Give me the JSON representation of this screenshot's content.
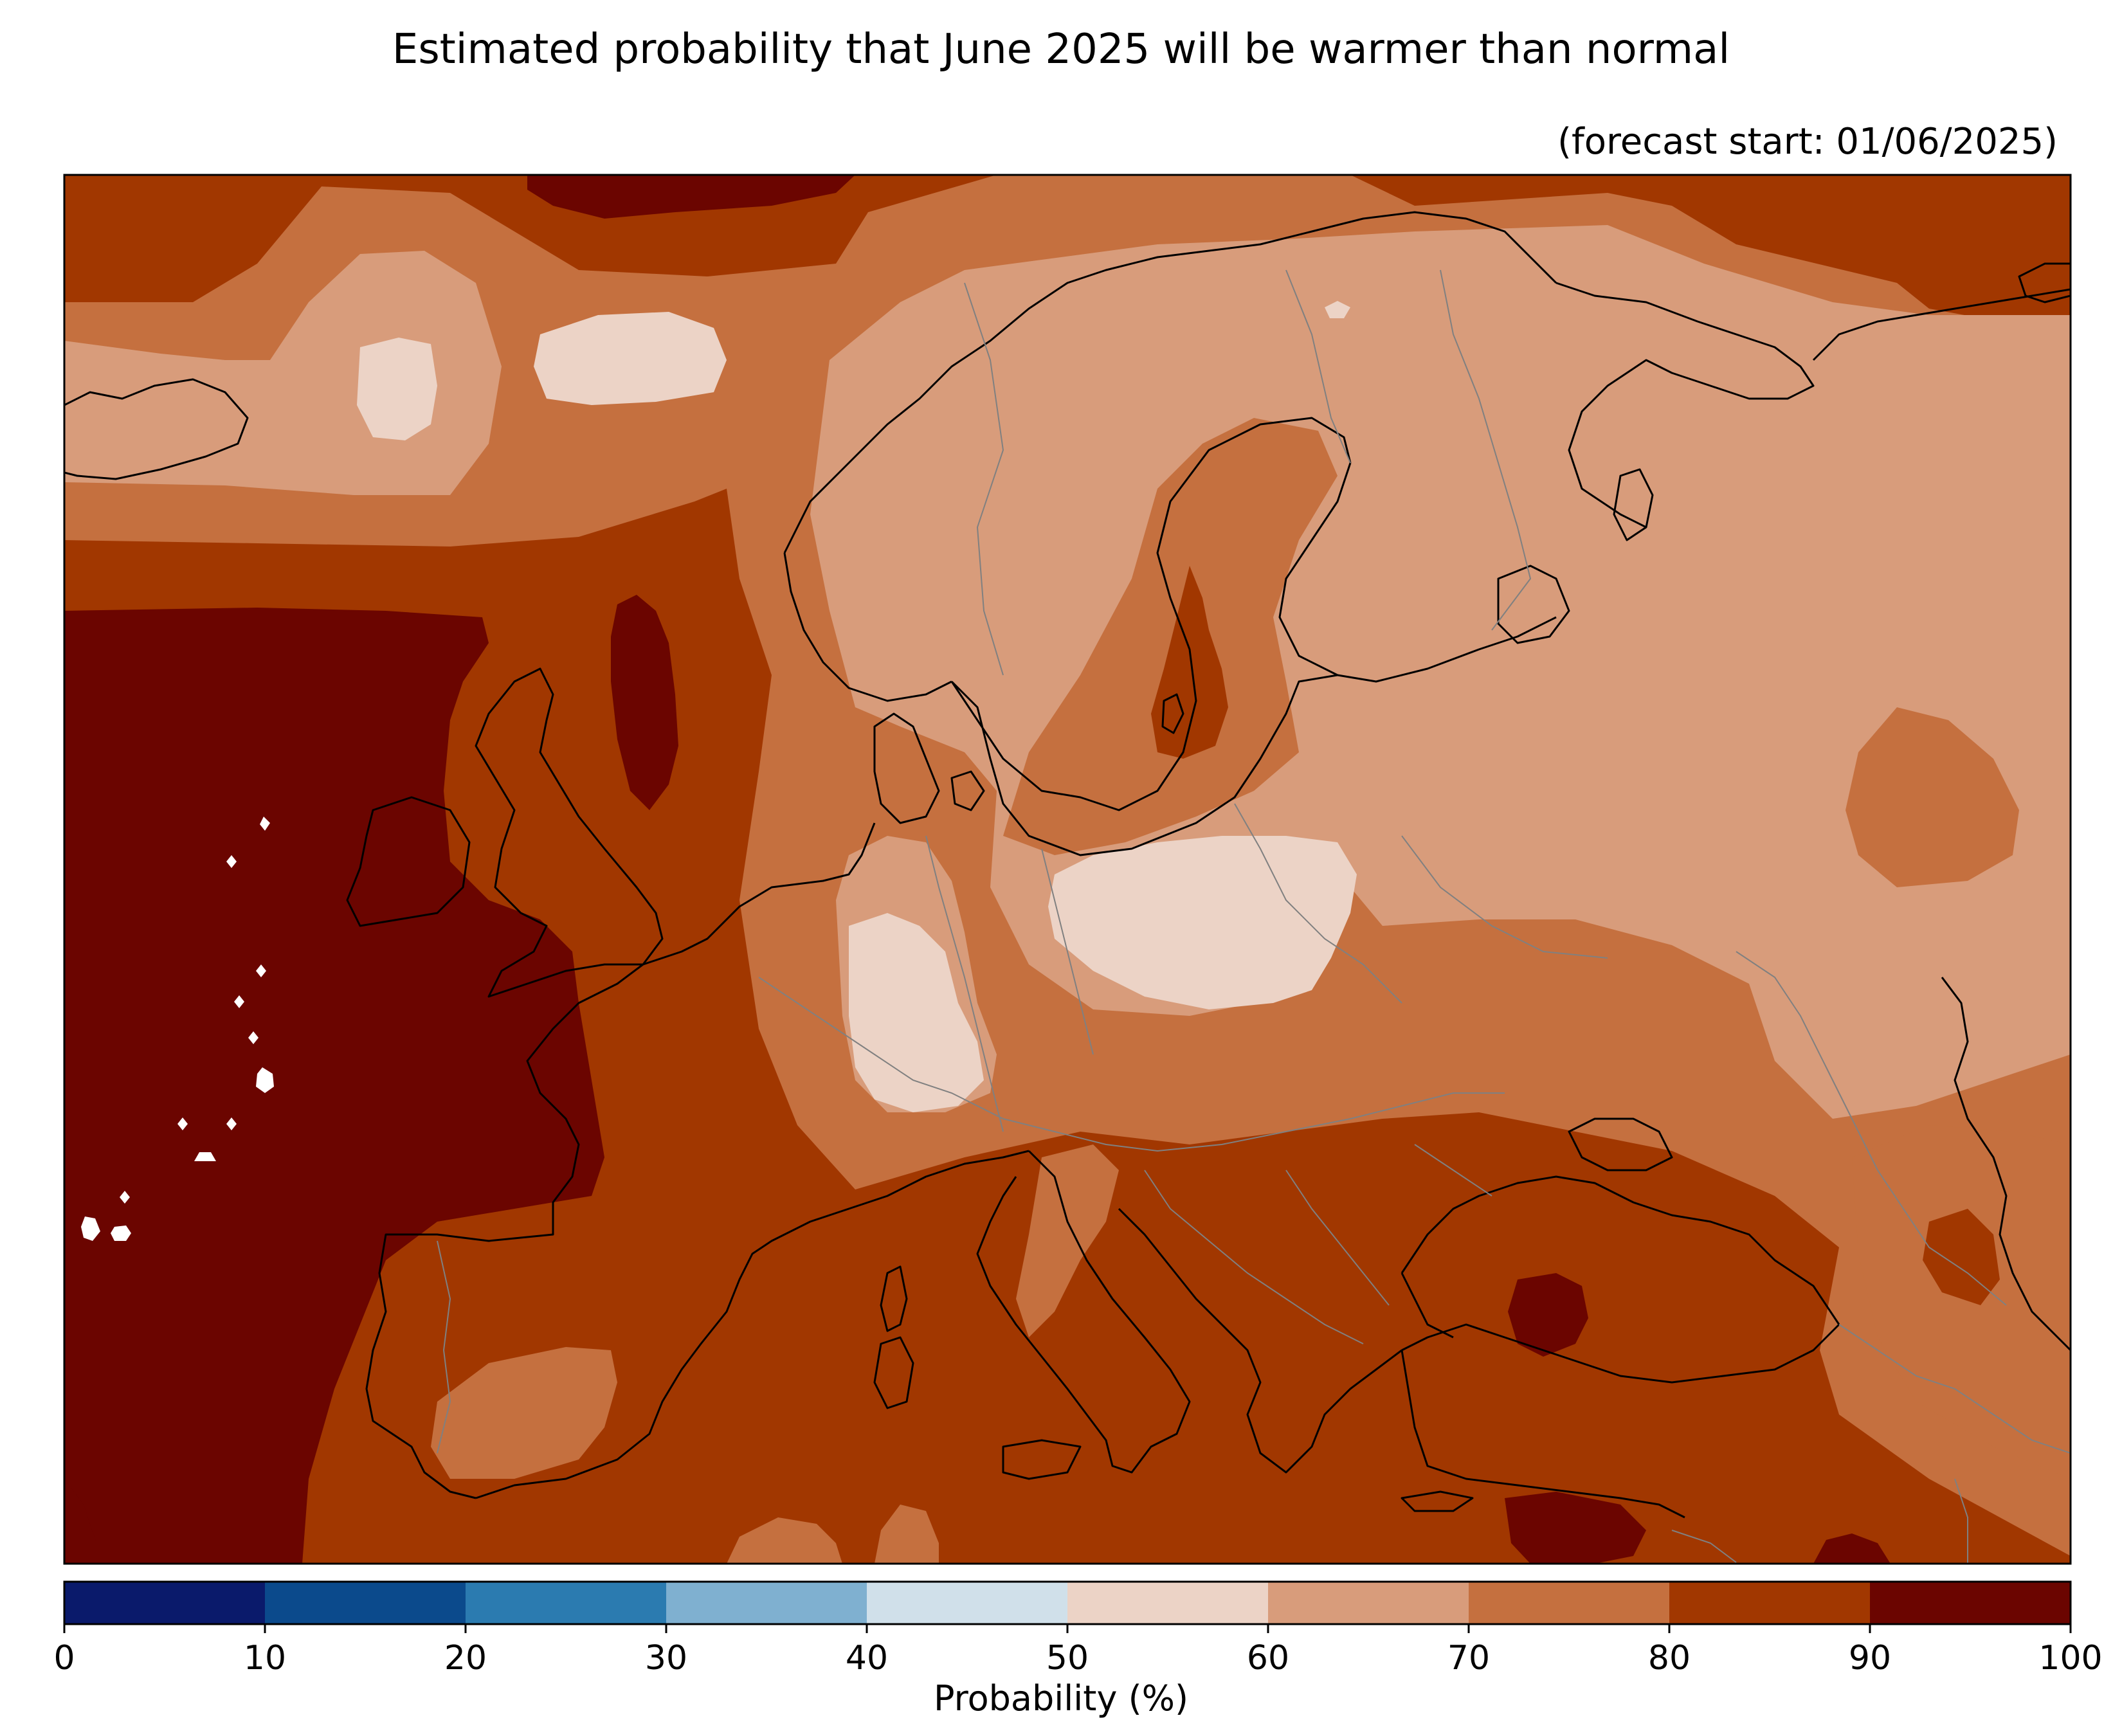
{
  "title": "Estimated probability that June 2025 will be warmer than normal",
  "subtitle": "(forecast start: 01/06/2025)",
  "colorbar": {
    "label": "Probability (%)",
    "ticks": [
      "0",
      "10",
      "20",
      "30",
      "40",
      "50",
      "60",
      "70",
      "80",
      "90",
      "100"
    ],
    "bins": [
      {
        "range": [
          0,
          10
        ],
        "color": "#0a1a6b"
      },
      {
        "range": [
          10,
          20
        ],
        "color": "#0b4a8c"
      },
      {
        "range": [
          20,
          30
        ],
        "color": "#2b7bb0"
      },
      {
        "range": [
          30,
          40
        ],
        "color": "#7fb0d0"
      },
      {
        "range": [
          40,
          50
        ],
        "color": "#d0e0ea"
      },
      {
        "range": [
          50,
          60
        ],
        "color": "#ecd3c6"
      },
      {
        "range": [
          60,
          70
        ],
        "color": "#d89c7b"
      },
      {
        "range": [
          70,
          80
        ],
        "color": "#c5703f"
      },
      {
        "range": [
          80,
          90
        ],
        "color": "#a13700"
      },
      {
        "range": [
          90,
          100
        ],
        "color": "#6b0500"
      }
    ]
  },
  "map": {
    "region": "Europe",
    "coastline_color": "#000000",
    "border_color": "#808080"
  }
}
